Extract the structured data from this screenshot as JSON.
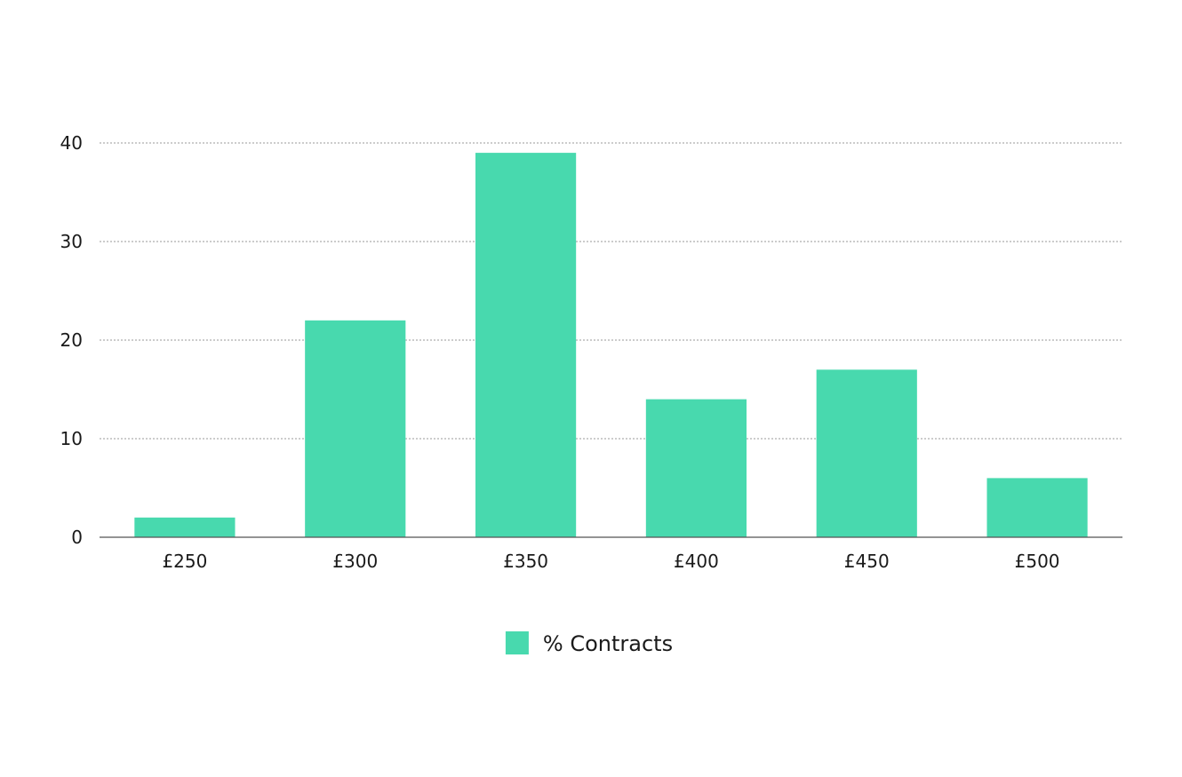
{
  "chart_data": {
    "type": "bar",
    "title": "",
    "xlabel": "",
    "ylabel": "",
    "categories": [
      "£250",
      "£300",
      "£350",
      "£400",
      "£450",
      "£500"
    ],
    "series": [
      {
        "name": "% Contracts",
        "color": "#48d9ae",
        "values": [
          2,
          22,
          39,
          14,
          17,
          6
        ]
      }
    ],
    "ylim": [
      0,
      40
    ],
    "yticks": [
      0,
      10,
      20,
      30,
      40
    ],
    "grid": true,
    "legend": "bottom-center"
  }
}
